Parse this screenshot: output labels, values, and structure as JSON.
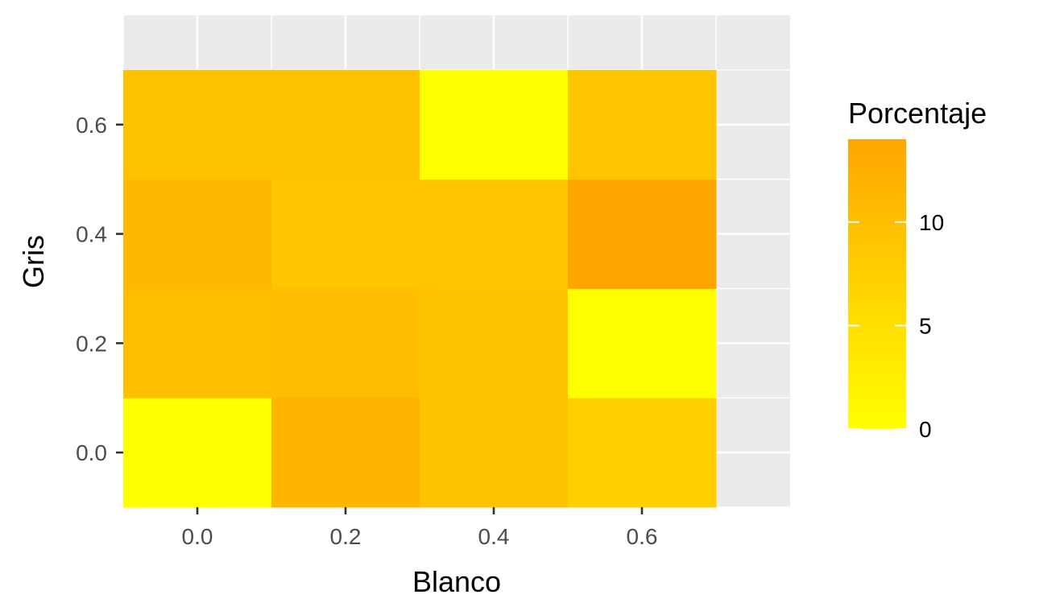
{
  "chart_data": {
    "type": "heatmap",
    "title": "",
    "xlabel": "Blanco",
    "ylabel": "Gris",
    "x": [
      0.0,
      0.2,
      0.4,
      0.6
    ],
    "y": [
      0.0,
      0.2,
      0.4,
      0.6
    ],
    "x_tick_labels": [
      "0.0",
      "0.2",
      "0.4",
      "0.6"
    ],
    "y_tick_labels": [
      "0.0",
      "0.2",
      "0.4",
      "0.6"
    ],
    "xlim": [
      -0.1,
      0.8
    ],
    "ylim": [
      -0.1,
      0.8
    ],
    "cells": [
      {
        "x": 0.0,
        "y": 0.0,
        "value": 0
      },
      {
        "x": 0.2,
        "y": 0.0,
        "value": 11.5
      },
      {
        "x": 0.4,
        "y": 0.0,
        "value": 9.5
      },
      {
        "x": 0.6,
        "y": 0.0,
        "value": 7.5
      },
      {
        "x": 0.0,
        "y": 0.2,
        "value": 10
      },
      {
        "x": 0.2,
        "y": 0.2,
        "value": 10.5
      },
      {
        "x": 0.4,
        "y": 0.2,
        "value": 9.5
      },
      {
        "x": 0.6,
        "y": 0.2,
        "value": 0
      },
      {
        "x": 0.0,
        "y": 0.4,
        "value": 11
      },
      {
        "x": 0.2,
        "y": 0.4,
        "value": 9
      },
      {
        "x": 0.4,
        "y": 0.4,
        "value": 9
      },
      {
        "x": 0.6,
        "y": 0.4,
        "value": 14
      },
      {
        "x": 0.0,
        "y": 0.6,
        "value": 9.5
      },
      {
        "x": 0.2,
        "y": 0.6,
        "value": 9.5
      },
      {
        "x": 0.4,
        "y": 0.6,
        "value": 0
      },
      {
        "x": 0.6,
        "y": 0.6,
        "value": 9
      }
    ],
    "legend": {
      "title": "Porcentaje",
      "min": 0,
      "max": 14,
      "ticks": [
        0,
        5,
        10
      ],
      "tick_labels": [
        "0",
        "5",
        "10"
      ],
      "low_color": "#ffff00",
      "high_color": "#ffa500",
      "placement": "right"
    },
    "panel_background": "#ebebeb",
    "grid": true
  }
}
